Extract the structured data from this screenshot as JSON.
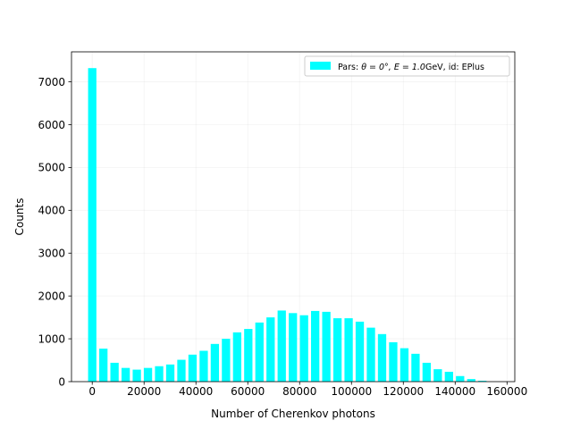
{
  "chart_data": {
    "type": "bar",
    "title": "",
    "xlabel": "Number of Cherenkov photons",
    "ylabel": "Counts",
    "xlim": [
      -8000,
      163000
    ],
    "ylim": [
      0,
      7700
    ],
    "xticks": [
      0,
      20000,
      40000,
      60000,
      80000,
      100000,
      120000,
      140000,
      160000
    ],
    "yticks": [
      0,
      1000,
      2000,
      3000,
      4000,
      5000,
      6000,
      7000
    ],
    "grid": true,
    "legend": "top-right",
    "bar_width": 3200,
    "series": [
      {
        "name_prefix": "Pars: ",
        "name_math": "θ = 0°, E = 1.0",
        "name_suffix": "GeV, id: EPlus",
        "color": "#00ffff",
        "x": [
          0,
          4300,
          8600,
          12900,
          17200,
          21500,
          25800,
          30100,
          34400,
          38700,
          43000,
          47300,
          51600,
          55900,
          60200,
          64500,
          68800,
          73100,
          77400,
          81700,
          86000,
          90300,
          94600,
          98900,
          103200,
          107500,
          111800,
          116100,
          120400,
          124700,
          129000,
          133300,
          137600,
          141900,
          146200,
          150500
        ],
        "values": [
          7320,
          770,
          440,
          320,
          280,
          320,
          360,
          400,
          510,
          630,
          720,
          880,
          1000,
          1150,
          1230,
          1380,
          1500,
          1660,
          1600,
          1550,
          1650,
          1630,
          1480,
          1480,
          1400,
          1260,
          1110,
          920,
          780,
          650,
          440,
          290,
          230,
          130,
          60,
          20
        ]
      }
    ]
  }
}
